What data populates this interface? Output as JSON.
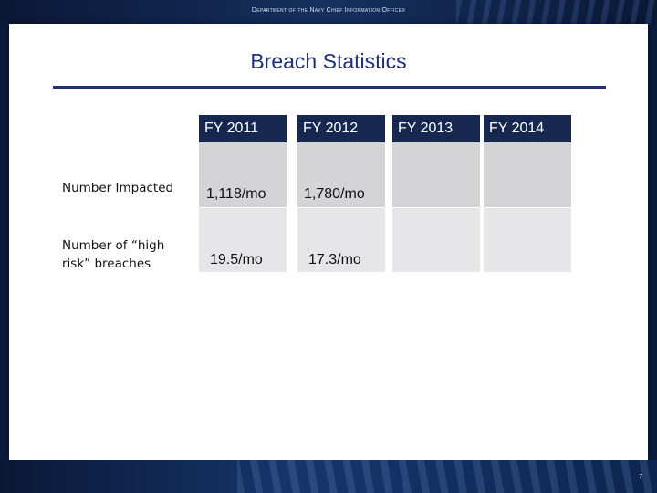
{
  "header": {
    "department": "Department of the Navy Chief Information Officer"
  },
  "slide": {
    "title": "Breach Statistics",
    "page_number": "7"
  },
  "table": {
    "columns": [
      "FY 2011",
      "FY 2012",
      "FY 2013",
      "FY 2014"
    ],
    "rows": [
      {
        "label": "Number Impacted",
        "values": [
          "1,118/mo",
          "1,780/mo",
          "",
          ""
        ]
      },
      {
        "label": "Number of “high risk” breaches",
        "values": [
          "19.5/mo",
          "17.3/mo",
          "",
          ""
        ]
      }
    ]
  },
  "colors": {
    "title": "#1f2f78",
    "header_cell": "#16284f",
    "row1_cell": "#d4d4d6",
    "row2_cell": "#e6e6e8",
    "background_band": "#0c1c3e"
  }
}
